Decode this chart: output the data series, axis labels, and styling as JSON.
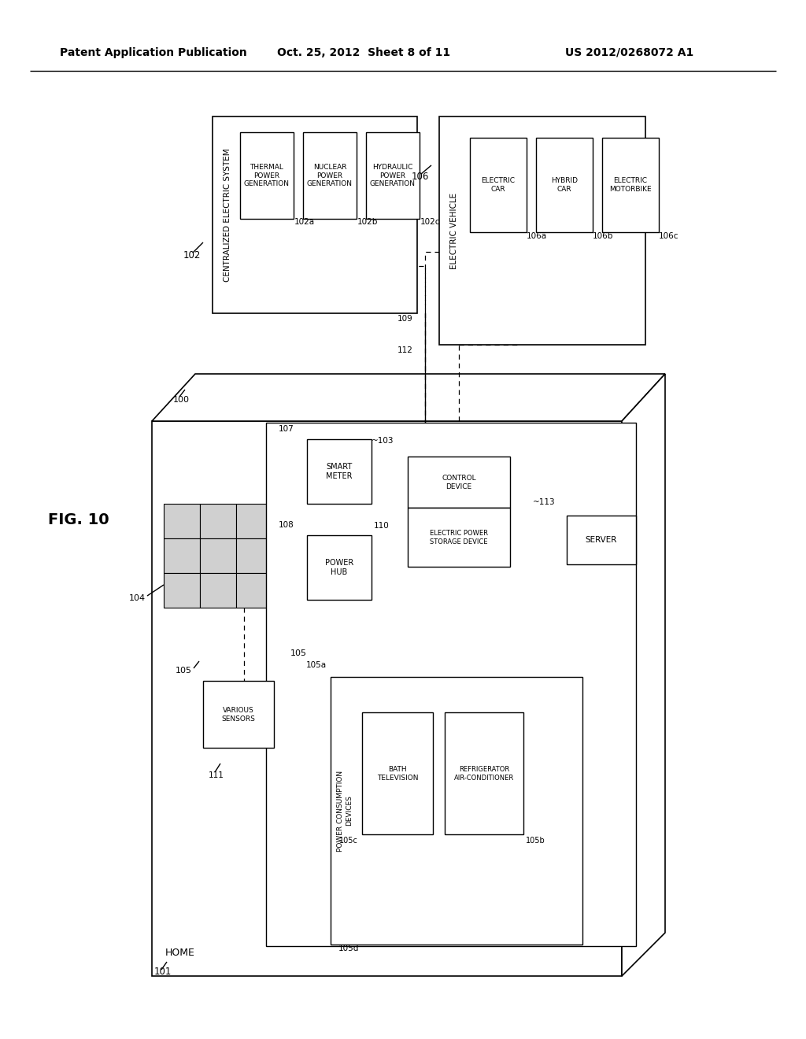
{
  "header_left": "Patent Application Publication",
  "header_center": "Oct. 25, 2012  Sheet 8 of 11",
  "header_right": "US 2012/0268072 A1"
}
